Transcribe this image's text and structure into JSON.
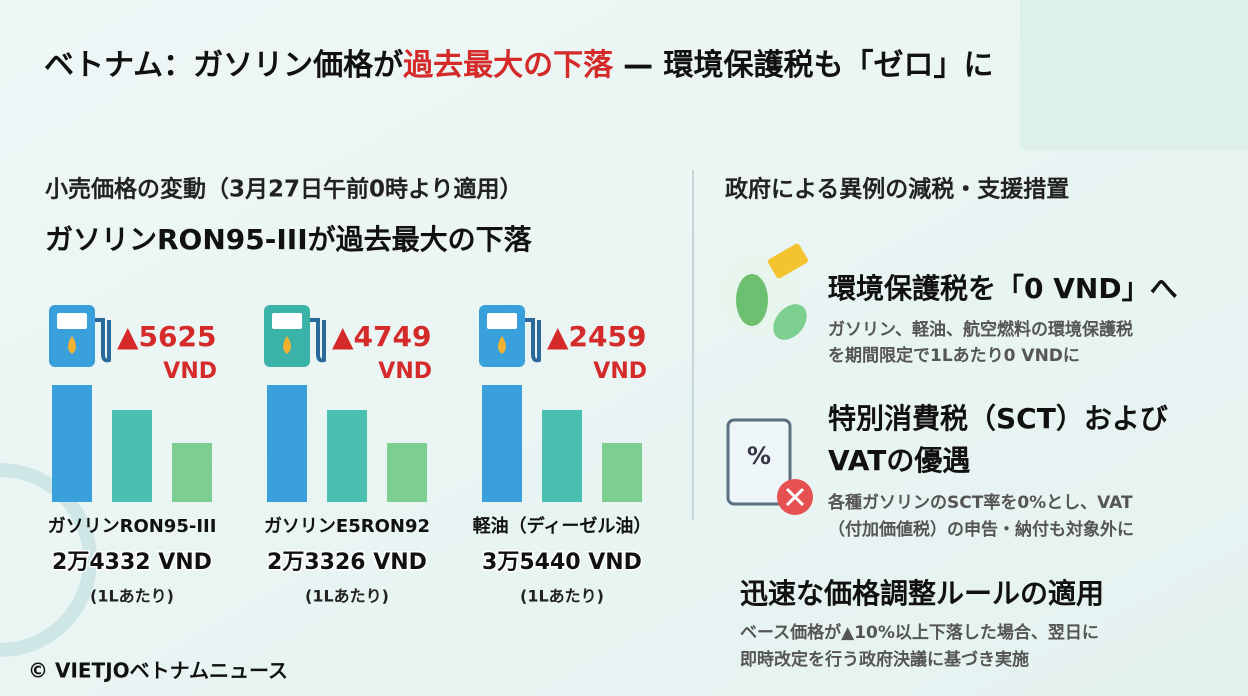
{
  "header": {
    "title_parts": [
      "ベトナム：ガソリン価格が",
      "過去最大の下落",
      "— 環境保護税も「ゼロ」に"
    ]
  },
  "left": {
    "subtitle": "小売価格の変動（3月27日午前0時より適用）",
    "headline": "ガソリンRON95-IIIが過去最大の下落",
    "items": [
      {
        "change": "▲5625",
        "unit": "VND",
        "name": "ガソリンRON95-III",
        "price": "2万4332 VND",
        "per": "(1Lあたり)"
      },
      {
        "change": "▲4749",
        "unit": "VND",
        "name": "ガソリンE5RON92",
        "price": "2万3326 VND",
        "per": "(1Lあたり)"
      },
      {
        "change": "▲2459",
        "unit": "VND",
        "name": "軽油（ディーゼル油）",
        "price": "3万5440 VND",
        "per": "(1Lあたり)"
      }
    ]
  },
  "right": {
    "title": "政府による異例の減税・支援措置",
    "measures": [
      {
        "title": [
          "環境保護税を「0 VND」へ"
        ],
        "body": [
          "ガソリン、軽油、航空燃料の環境保護税",
          "を期間限定で1Lあたり0 VNDに"
        ]
      },
      {
        "title": [
          "特別消費税（SCT）および",
          "VATの優遇"
        ],
        "body": [
          "各種ガソリンのSCT率を0%とし、VAT",
          "（付加価値税）の申告・納付も対象外に"
        ]
      },
      {
        "title": [
          "迅速な価格調整ルールの適用"
        ],
        "body": [
          "ベース価格が▲10%以上下落した場合、翌日に",
          "即時改定を行う政府決議に基づき実施"
        ]
      }
    ]
  },
  "footer": {
    "credit": "© VIETJOベトナムニュース"
  }
}
